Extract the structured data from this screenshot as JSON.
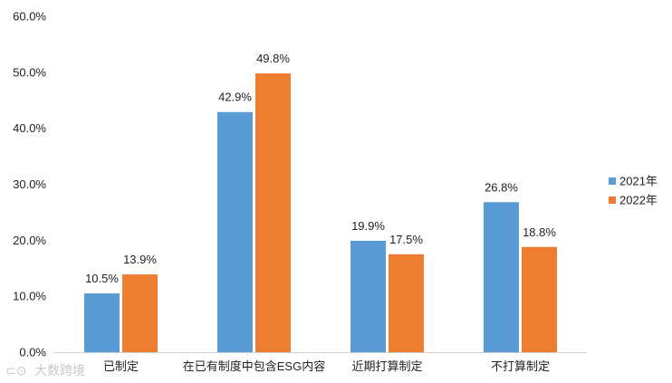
{
  "chart_data": {
    "type": "bar",
    "categories": [
      "已制定",
      "在已有制度中包含ESG内容",
      "近期打算制定",
      "不打算制定"
    ],
    "series": [
      {
        "name": "2021年",
        "color": "#5b9bd5",
        "values": [
          10.5,
          42.9,
          19.9,
          26.8
        ]
      },
      {
        "name": "2022年",
        "color": "#ed7d31",
        "values": [
          13.9,
          49.8,
          17.5,
          18.8
        ]
      }
    ],
    "ylim": [
      0,
      60
    ],
    "yticks": [
      0,
      10,
      20,
      30,
      40,
      50,
      60
    ],
    "ytick_labels": [
      "0.0%",
      "10.0%",
      "20.0%",
      "30.0%",
      "40.0%",
      "50.0%",
      "60.0%"
    ],
    "data_labels": [
      [
        "10.5%",
        "42.9%",
        "19.9%",
        "26.8%"
      ],
      [
        "13.9%",
        "49.8%",
        "17.5%",
        "18.8%"
      ]
    ],
    "grid": false,
    "legend": "right"
  },
  "watermark": "大数跨境"
}
